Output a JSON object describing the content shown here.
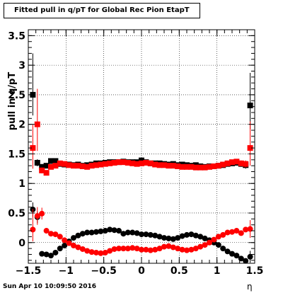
{
  "title": "Fitted pull in q/pT for Global Rec Pion EtapT",
  "timestamp": "Sun Apr 10 10:09:50 2016",
  "colors": {
    "black_series": "#000000",
    "red_series": "#ff0000",
    "frame": "#000000"
  },
  "chart_data": {
    "type": "scatter",
    "title": "Fitted pull in q/pT for Global Rec Pion EtapT",
    "xlabel": "η",
    "ylabel": "pull in q/pT",
    "xlim": [
      -1.5,
      1.5
    ],
    "ylim": [
      -0.35,
      3.6
    ],
    "grid": true,
    "xticks": [
      -1.5,
      -1,
      -0.5,
      0,
      0.5,
      1,
      1.5
    ],
    "xtick_labels": [
      "−1.5",
      "−1",
      "−0.5",
      "0",
      "0.5",
      "1",
      "1.5"
    ],
    "yticks": [
      0,
      0.5,
      1,
      1.5,
      2,
      2.5,
      3,
      3.5
    ],
    "ytick_labels": [
      "0",
      "0.5",
      "1",
      "1.5",
      "2",
      "2.5",
      "3",
      "3.5"
    ],
    "x": [
      -1.44,
      -1.38,
      -1.32,
      -1.26,
      -1.2,
      -1.14,
      -1.08,
      -1.02,
      -0.96,
      -0.9,
      -0.84,
      -0.78,
      -0.72,
      -0.66,
      -0.6,
      -0.54,
      -0.48,
      -0.42,
      -0.36,
      -0.3,
      -0.24,
      -0.18,
      -0.12,
      -0.06,
      0.0,
      0.06,
      0.12,
      0.18,
      0.24,
      0.3,
      0.36,
      0.42,
      0.48,
      0.54,
      0.6,
      0.66,
      0.72,
      0.78,
      0.84,
      0.9,
      0.96,
      1.02,
      1.08,
      1.14,
      1.2,
      1.26,
      1.32,
      1.38,
      1.44
    ],
    "series": [
      {
        "marker": "square",
        "color": "#000000",
        "values": [
          2.5,
          1.35,
          1.28,
          1.3,
          1.38,
          1.38,
          1.33,
          1.32,
          1.32,
          1.31,
          1.32,
          1.3,
          1.31,
          1.32,
          1.34,
          1.34,
          1.35,
          1.36,
          1.36,
          1.36,
          1.37,
          1.36,
          1.36,
          1.36,
          1.39,
          1.36,
          1.34,
          1.34,
          1.34,
          1.33,
          1.32,
          1.33,
          1.31,
          1.32,
          1.31,
          1.3,
          1.31,
          1.29,
          1.28,
          1.29,
          1.29,
          1.3,
          1.31,
          1.33,
          1.34,
          1.35,
          1.33,
          1.31,
          2.32
        ],
        "err_low": [
          0.35,
          0.06,
          0.05,
          0.04,
          0.03,
          0.03,
          0.03,
          0.03,
          0.03,
          0.03,
          0.03,
          0.03,
          0.03,
          0.03,
          0.03,
          0.03,
          0.03,
          0.03,
          0.03,
          0.03,
          0.03,
          0.03,
          0.03,
          0.03,
          0.03,
          0.03,
          0.03,
          0.03,
          0.03,
          0.03,
          0.03,
          0.03,
          0.03,
          0.03,
          0.03,
          0.03,
          0.03,
          0.03,
          0.03,
          0.03,
          0.03,
          0.03,
          0.03,
          0.03,
          0.03,
          0.04,
          0.05,
          0.06,
          0.4
        ],
        "err_high": [
          0.7,
          0.06,
          0.05,
          0.04,
          0.03,
          0.03,
          0.03,
          0.03,
          0.03,
          0.03,
          0.03,
          0.03,
          0.03,
          0.03,
          0.03,
          0.03,
          0.03,
          0.03,
          0.03,
          0.03,
          0.03,
          0.03,
          0.03,
          0.03,
          0.03,
          0.03,
          0.03,
          0.03,
          0.03,
          0.03,
          0.03,
          0.03,
          0.03,
          0.03,
          0.03,
          0.03,
          0.03,
          0.03,
          0.03,
          0.03,
          0.03,
          0.03,
          0.03,
          0.03,
          0.03,
          0.04,
          0.05,
          0.06,
          0.55
        ]
      },
      {
        "marker": "square",
        "color": "#ff0000",
        "values": [
          1.6,
          2.0,
          1.22,
          1.18,
          1.28,
          1.3,
          1.34,
          1.33,
          1.31,
          1.3,
          1.3,
          1.29,
          1.28,
          1.3,
          1.31,
          1.32,
          1.33,
          1.34,
          1.35,
          1.36,
          1.36,
          1.35,
          1.34,
          1.33,
          1.34,
          1.35,
          1.34,
          1.32,
          1.31,
          1.31,
          1.3,
          1.3,
          1.29,
          1.28,
          1.28,
          1.28,
          1.27,
          1.27,
          1.27,
          1.28,
          1.29,
          1.3,
          1.32,
          1.34,
          1.36,
          1.37,
          1.34,
          1.33,
          1.6
        ],
        "err_low": [
          0.35,
          0.45,
          0.05,
          0.04,
          0.03,
          0.03,
          0.03,
          0.03,
          0.03,
          0.03,
          0.03,
          0.03,
          0.03,
          0.03,
          0.03,
          0.03,
          0.03,
          0.03,
          0.03,
          0.03,
          0.03,
          0.03,
          0.03,
          0.03,
          0.03,
          0.03,
          0.03,
          0.03,
          0.03,
          0.03,
          0.03,
          0.03,
          0.03,
          0.03,
          0.03,
          0.03,
          0.03,
          0.03,
          0.03,
          0.03,
          0.03,
          0.03,
          0.03,
          0.03,
          0.03,
          0.04,
          0.05,
          0.06,
          0.3
        ],
        "err_high": [
          0.4,
          0.6,
          0.05,
          0.04,
          0.03,
          0.03,
          0.03,
          0.03,
          0.03,
          0.03,
          0.03,
          0.03,
          0.03,
          0.03,
          0.03,
          0.03,
          0.03,
          0.03,
          0.03,
          0.03,
          0.03,
          0.03,
          0.03,
          0.03,
          0.03,
          0.03,
          0.03,
          0.03,
          0.03,
          0.03,
          0.03,
          0.03,
          0.03,
          0.03,
          0.03,
          0.03,
          0.03,
          0.03,
          0.03,
          0.03,
          0.03,
          0.03,
          0.03,
          0.03,
          0.03,
          0.04,
          0.05,
          0.06,
          0.45
        ]
      },
      {
        "marker": "circle",
        "color": "#000000",
        "values": [
          0.56,
          0.43,
          -0.19,
          -0.2,
          -0.22,
          -0.17,
          -0.1,
          -0.05,
          0.02,
          0.08,
          0.12,
          0.15,
          0.17,
          0.17,
          0.18,
          0.19,
          0.2,
          0.22,
          0.21,
          0.2,
          0.15,
          0.17,
          0.17,
          0.16,
          0.14,
          0.14,
          0.13,
          0.12,
          0.1,
          0.08,
          0.07,
          0.06,
          0.08,
          0.11,
          0.13,
          0.14,
          0.12,
          0.1,
          0.07,
          0.04,
          0.0,
          -0.04,
          -0.1,
          -0.15,
          -0.19,
          -0.22,
          -0.27,
          -0.31,
          -0.24
        ],
        "err_low": [
          0.12,
          0.1,
          0.03,
          0.02,
          0.02,
          0.02,
          0.02,
          0.02,
          0.02,
          0.02,
          0.02,
          0.02,
          0.02,
          0.02,
          0.02,
          0.02,
          0.02,
          0.02,
          0.02,
          0.02,
          0.02,
          0.02,
          0.02,
          0.02,
          0.02,
          0.02,
          0.02,
          0.02,
          0.02,
          0.02,
          0.02,
          0.02,
          0.02,
          0.02,
          0.02,
          0.02,
          0.02,
          0.02,
          0.02,
          0.02,
          0.02,
          0.02,
          0.02,
          0.02,
          0.02,
          0.03,
          0.04,
          0.04,
          0.1
        ],
        "err_high": [
          0.12,
          0.1,
          0.03,
          0.02,
          0.02,
          0.02,
          0.02,
          0.02,
          0.02,
          0.02,
          0.02,
          0.02,
          0.02,
          0.02,
          0.02,
          0.02,
          0.02,
          0.02,
          0.02,
          0.02,
          0.02,
          0.02,
          0.02,
          0.02,
          0.02,
          0.02,
          0.02,
          0.02,
          0.02,
          0.02,
          0.02,
          0.02,
          0.02,
          0.02,
          0.02,
          0.02,
          0.02,
          0.02,
          0.02,
          0.02,
          0.02,
          0.02,
          0.02,
          0.02,
          0.02,
          0.03,
          0.04,
          0.04,
          0.1
        ]
      },
      {
        "marker": "circle",
        "color": "#ff0000",
        "values": [
          0.22,
          0.45,
          0.49,
          0.2,
          0.15,
          0.14,
          0.1,
          0.04,
          -0.01,
          -0.05,
          -0.08,
          -0.11,
          -0.14,
          -0.16,
          -0.17,
          -0.18,
          -0.17,
          -0.14,
          -0.11,
          -0.1,
          -0.1,
          -0.1,
          -0.09,
          -0.1,
          -0.12,
          -0.12,
          -0.13,
          -0.12,
          -0.1,
          -0.07,
          -0.06,
          -0.08,
          -0.1,
          -0.12,
          -0.13,
          -0.12,
          -0.1,
          -0.07,
          -0.04,
          0.0,
          0.05,
          0.1,
          0.13,
          0.17,
          0.18,
          0.2,
          0.16,
          0.22,
          0.23
        ],
        "err_low": [
          0.2,
          0.15,
          0.1,
          0.02,
          0.02,
          0.02,
          0.02,
          0.02,
          0.02,
          0.02,
          0.02,
          0.02,
          0.02,
          0.02,
          0.02,
          0.02,
          0.02,
          0.02,
          0.02,
          0.02,
          0.02,
          0.02,
          0.02,
          0.02,
          0.02,
          0.02,
          0.02,
          0.02,
          0.02,
          0.02,
          0.02,
          0.02,
          0.02,
          0.02,
          0.02,
          0.02,
          0.02,
          0.02,
          0.02,
          0.02,
          0.02,
          0.02,
          0.02,
          0.02,
          0.02,
          0.03,
          0.04,
          0.04,
          0.15
        ],
        "err_high": [
          0.35,
          0.15,
          0.1,
          0.02,
          0.02,
          0.02,
          0.02,
          0.02,
          0.02,
          0.02,
          0.02,
          0.02,
          0.02,
          0.02,
          0.02,
          0.02,
          0.02,
          0.02,
          0.02,
          0.02,
          0.02,
          0.02,
          0.02,
          0.02,
          0.02,
          0.02,
          0.02,
          0.02,
          0.02,
          0.02,
          0.02,
          0.02,
          0.02,
          0.02,
          0.02,
          0.02,
          0.02,
          0.02,
          0.02,
          0.02,
          0.02,
          0.02,
          0.02,
          0.02,
          0.02,
          0.03,
          0.04,
          0.04,
          0.15
        ]
      }
    ]
  }
}
